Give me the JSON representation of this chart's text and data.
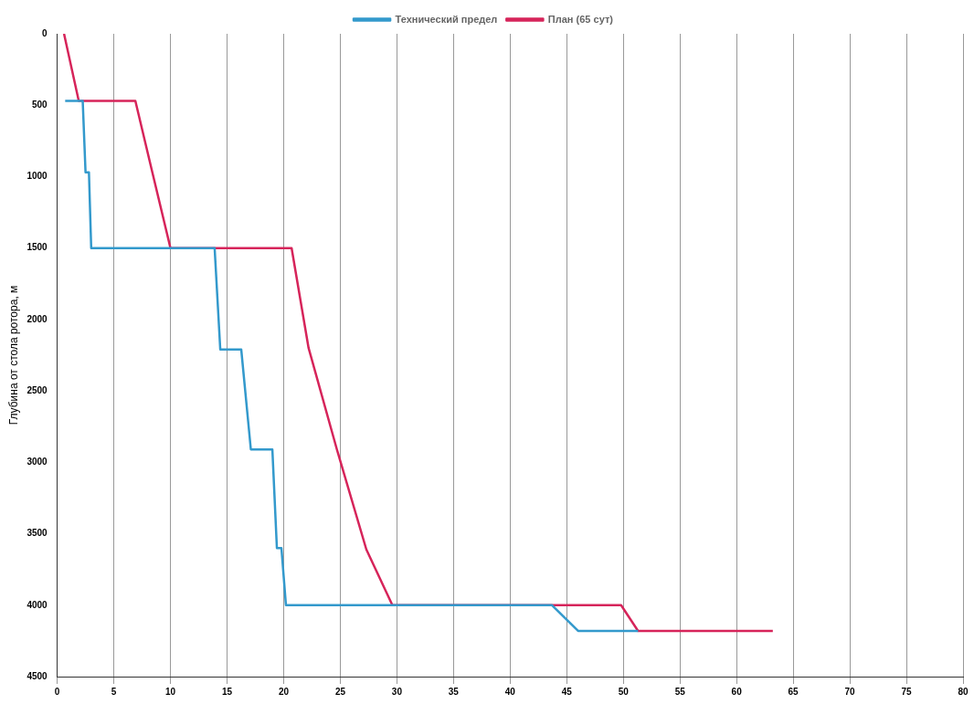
{
  "chart_data": {
    "type": "line",
    "ylabel": "Глубина от стола ротора, м",
    "xlim": [
      0,
      80
    ],
    "xticks": [
      0,
      5,
      10,
      15,
      20,
      25,
      30,
      35,
      40,
      45,
      50,
      55,
      60,
      65,
      70,
      75,
      80
    ],
    "ylim": [
      4500,
      0
    ],
    "yticks": [
      0,
      500,
      1000,
      1500,
      2000,
      2500,
      3000,
      3500,
      4000,
      4500
    ],
    "grid": "x",
    "legend": "top",
    "marker": "none",
    "line_style": "solid",
    "series": [
      {
        "name": "План (65 сут)",
        "color": "#d6245a",
        "x": [
          0.6,
          1.9,
          6.9,
          8.4,
          10,
          20.7,
          22.2,
          24.7,
          27.3,
          29.6,
          49.8,
          51.3,
          63.2
        ],
        "values": [
          0,
          470,
          470,
          970,
          1500,
          1500,
          2200,
          2910,
          3610,
          4000,
          4000,
          4180,
          4180
        ]
      },
      {
        "name": "Технический предел",
        "color": "#3399cc",
        "x": [
          0.7,
          2.25,
          2.5,
          2.8,
          3,
          13.9,
          14.4,
          16.25,
          17.1,
          19,
          19.4,
          19.8,
          20.2,
          43.7,
          46,
          51.3
        ],
        "values": [
          470,
          470,
          970,
          970,
          1500,
          1500,
          2210,
          2210,
          2910,
          2910,
          3600,
          3600,
          4000,
          4000,
          4180,
          4180
        ]
      }
    ]
  }
}
